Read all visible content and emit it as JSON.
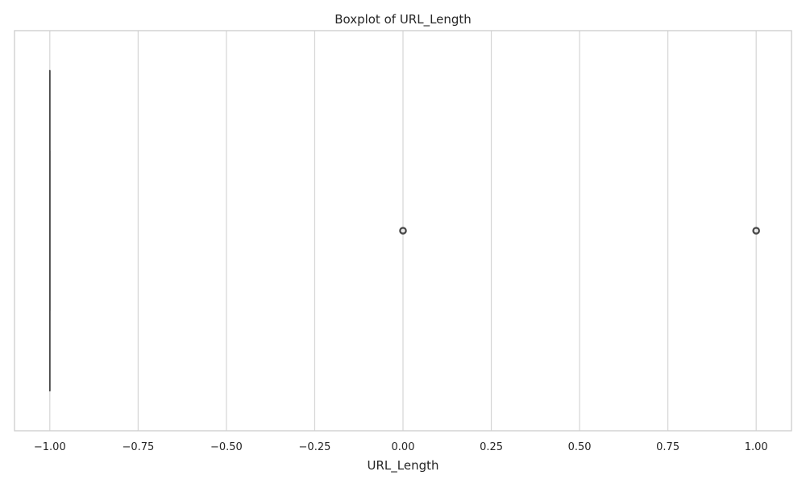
{
  "chart_data": {
    "type": "boxplot",
    "orientation": "horizontal",
    "title": "Boxplot of URL_Length",
    "xlabel": "URL_Length",
    "ylabel": "",
    "xlim": [
      -1.1,
      1.1
    ],
    "xticks": [
      -1.0,
      -0.75,
      -0.5,
      -0.25,
      0.0,
      0.25,
      0.5,
      0.75,
      1.0
    ],
    "xtick_labels": [
      "−1.00",
      "−0.75",
      "−0.50",
      "−0.25",
      "0.00",
      "0.25",
      "0.50",
      "0.75",
      "1.00"
    ],
    "grid": "vertical",
    "box": {
      "q1": -1.0,
      "median": -1.0,
      "q3": -1.0,
      "whisker_low": -1.0,
      "whisker_high": -1.0
    },
    "outliers": [
      0.0,
      1.0
    ],
    "colors": {
      "box": "#4a4a4a",
      "grid": "#d5d5d5",
      "frame": "#cfcfcf"
    }
  }
}
